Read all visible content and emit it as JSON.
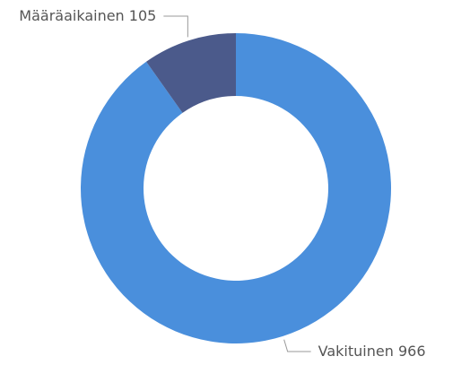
{
  "chart_data": {
    "type": "donut",
    "categories": [
      "Vakituinen",
      "Määräaikainen"
    ],
    "values": [
      966,
      105
    ],
    "colors": [
      "#4a8fdc",
      "#4b5a8b"
    ]
  }
}
